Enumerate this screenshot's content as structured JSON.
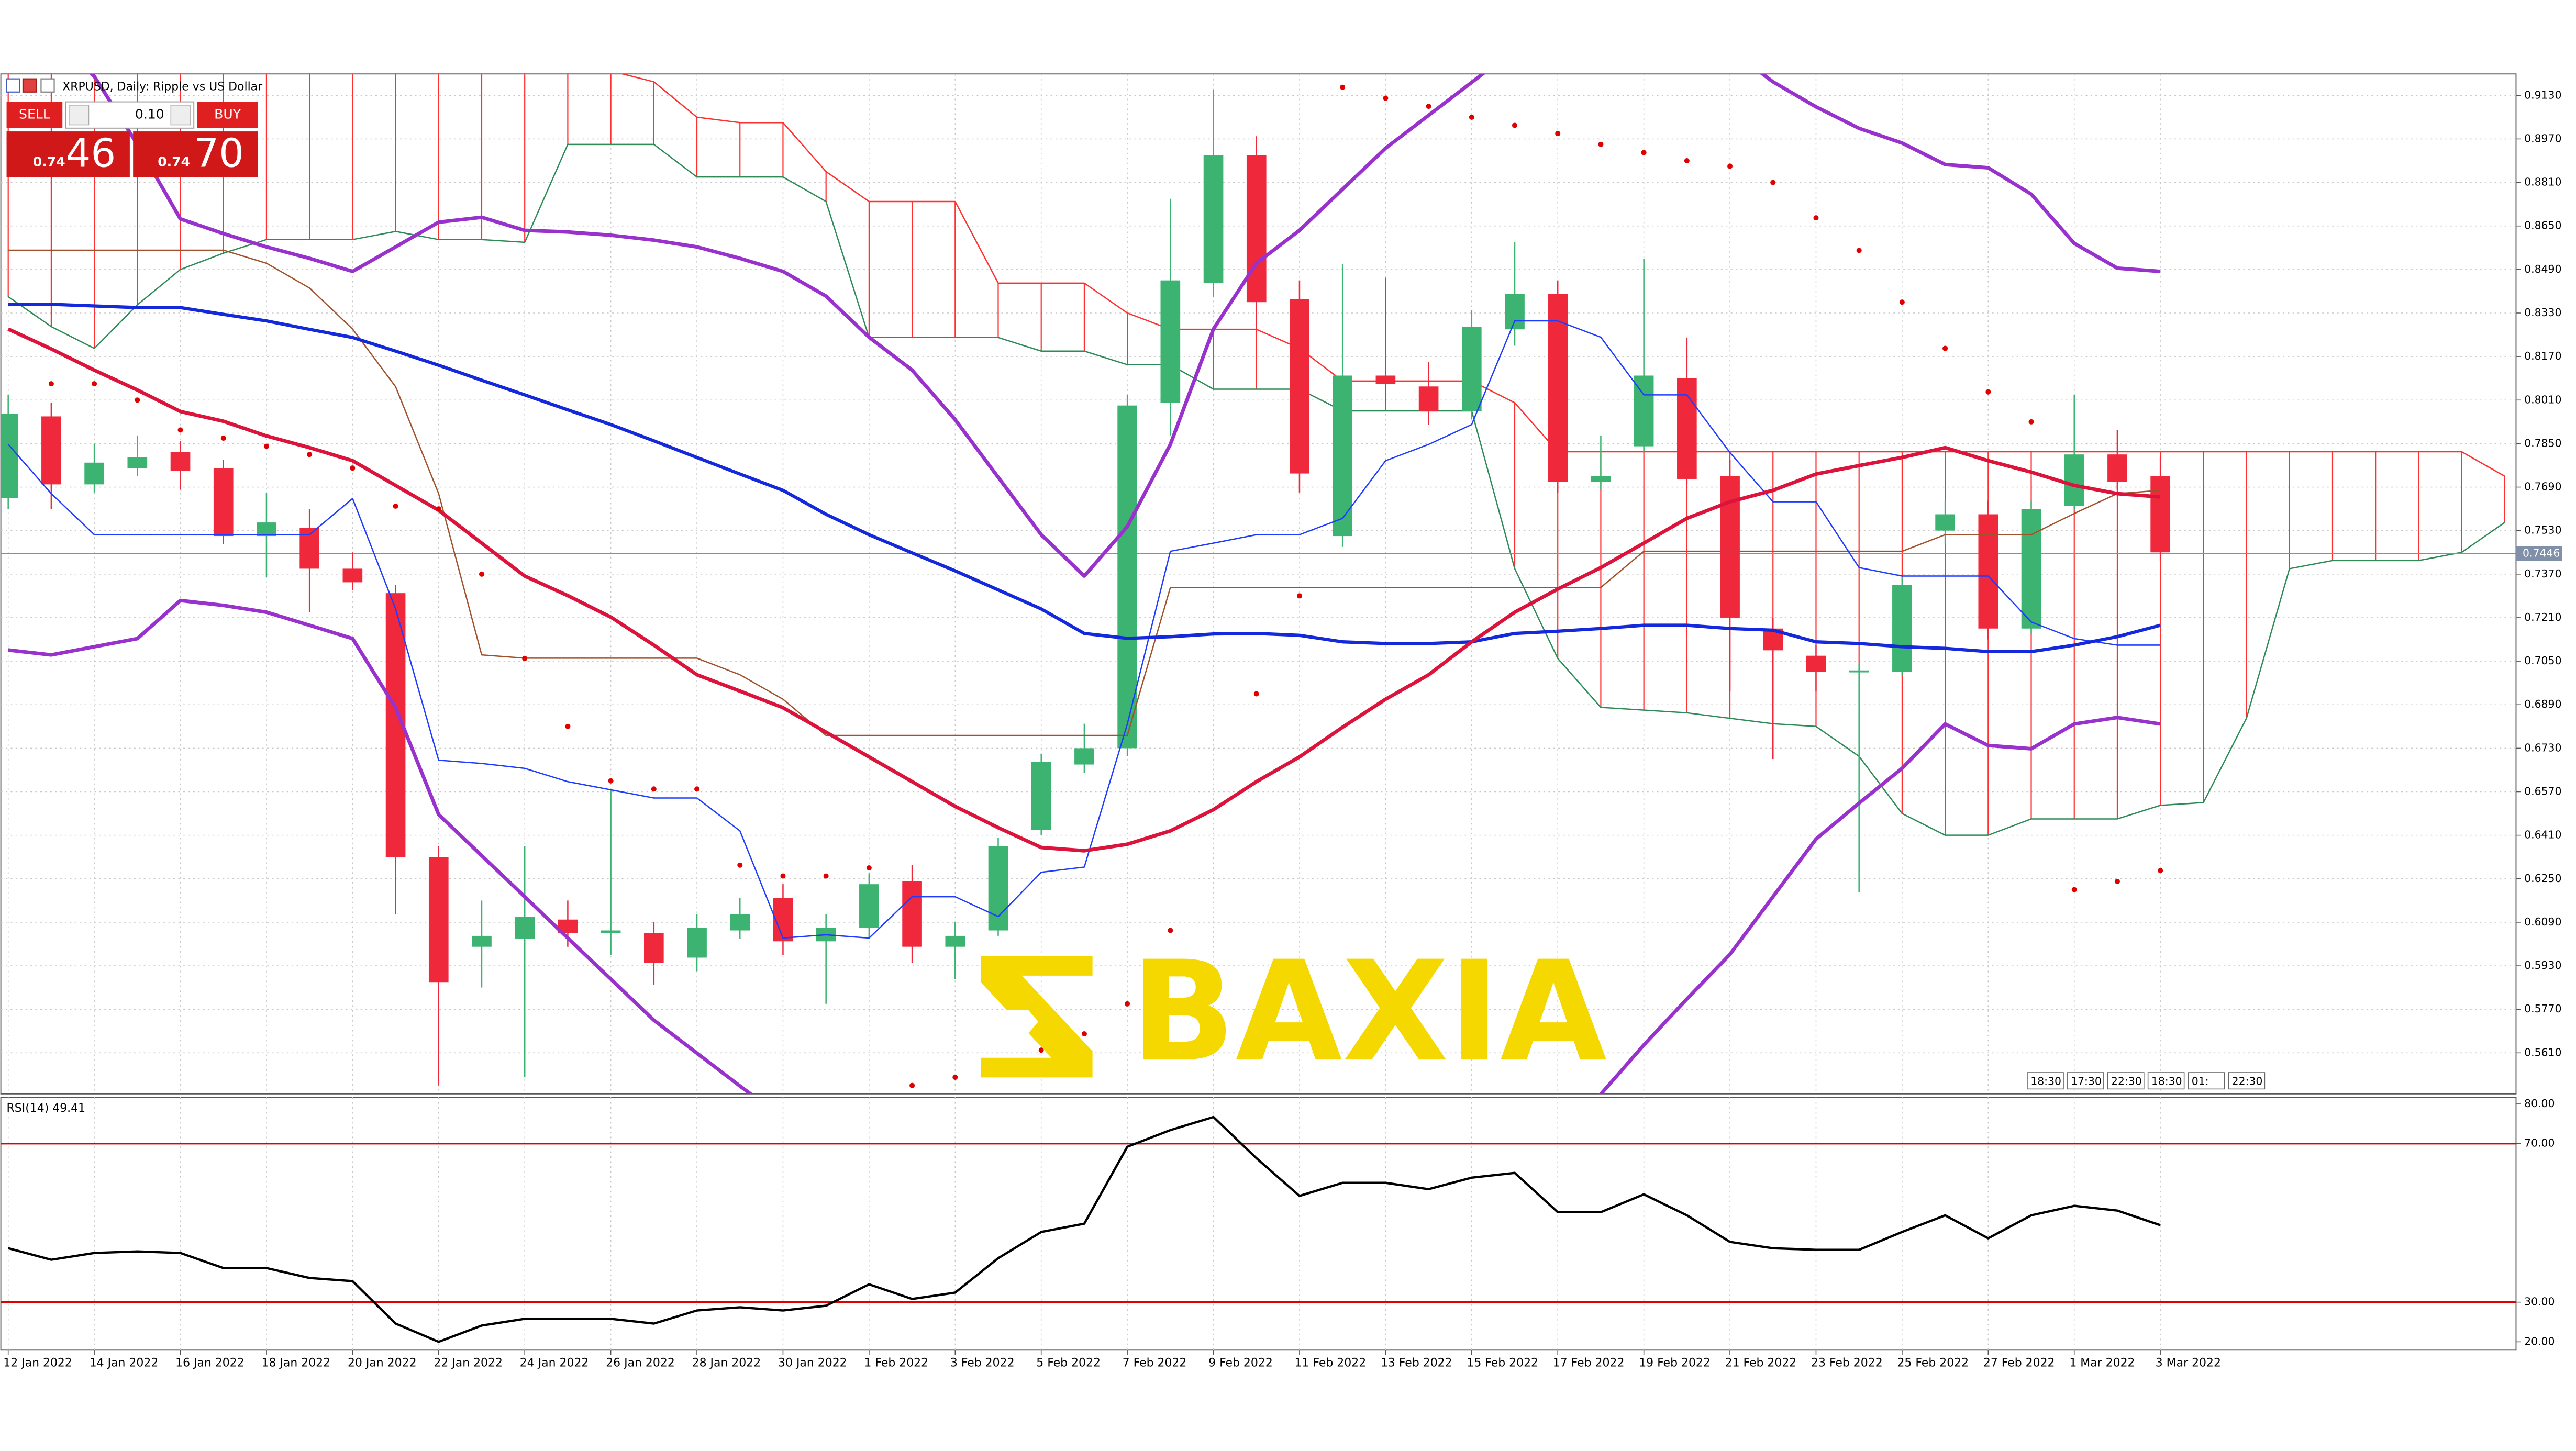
{
  "header": {
    "symbol": "XRPUSD, Daily: Ripple vs US Dollar"
  },
  "trade_panel": {
    "sell": "SELL",
    "buy": "BUY",
    "volume": "0.10",
    "bid_big": "0.74",
    "bid_small": "46",
    "ask_big": "0.74",
    "ask_small": "70"
  },
  "time_labels": [
    "18:30",
    "17:30",
    "22:30",
    "18:30",
    "01:",
    "22:30"
  ],
  "watermark": "BAXIA",
  "chart_data": [
    {
      "type": "candlestick",
      "categories": [
        "12 Jan 2022",
        null,
        "14 Jan 2022",
        null,
        "16 Jan 2022",
        null,
        "18 Jan 2022",
        null,
        "20 Jan 2022",
        null,
        "22 Jan 2022",
        null,
        "24 Jan 2022",
        null,
        "26 Jan 2022",
        null,
        "28 Jan 2022",
        null,
        "30 Jan 2022",
        null,
        "1 Feb 2022",
        null,
        "3 Feb 2022",
        null,
        "5 Feb 2022",
        null,
        "7 Feb 2022",
        null,
        "9 Feb 2022",
        null,
        "11 Feb 2022",
        null,
        "13 Feb 2022",
        null,
        "15 Feb 2022",
        null,
        "17 Feb 2022",
        null,
        "19 Feb 2022",
        null,
        "21 Feb 2022",
        null,
        "23 Feb 2022",
        null,
        "25 Feb 2022",
        null,
        "27 Feb 2022",
        null,
        "1 Mar 2022",
        null,
        "3 Mar 2022",
        null,
        null,
        null,
        null,
        null,
        null,
        null,
        null
      ],
      "open": [
        0.765,
        0.795,
        0.77,
        0.776,
        0.782,
        0.776,
        0.751,
        0.754,
        0.739,
        0.73,
        0.633,
        0.6,
        0.603,
        0.61,
        0.605,
        0.605,
        0.596,
        0.606,
        0.618,
        0.602,
        0.607,
        0.624,
        0.6,
        0.606,
        0.643,
        0.667,
        0.673,
        0.8,
        0.844,
        0.891,
        0.838,
        0.751,
        0.81,
        0.806,
        0.797,
        0.827,
        0.84,
        0.771,
        0.784,
        0.809,
        0.773,
        0.717,
        0.707,
        0.7013,
        0.701,
        0.753,
        0.759,
        0.717,
        0.762,
        0.781,
        0.773,
        null,
        null,
        null,
        null,
        null,
        null,
        null,
        null
      ],
      "high": [
        0.803,
        0.8,
        0.785,
        0.788,
        0.786,
        0.779,
        0.767,
        0.761,
        0.745,
        0.733,
        0.637,
        0.617,
        0.637,
        0.617,
        0.658,
        0.609,
        0.612,
        0.618,
        0.623,
        0.612,
        0.627,
        0.63,
        0.609,
        0.64,
        0.671,
        0.682,
        0.803,
        0.875,
        0.915,
        0.898,
        0.845,
        0.851,
        0.846,
        0.815,
        0.834,
        0.859,
        0.845,
        0.788,
        0.853,
        0.824,
        0.779,
        0.721,
        0.711,
        0.704,
        0.736,
        0.764,
        0.764,
        0.764,
        0.803,
        0.79,
        0.78,
        null,
        null,
        null,
        null,
        null,
        null,
        null,
        null
      ],
      "low": [
        0.761,
        0.761,
        0.767,
        0.773,
        0.768,
        0.748,
        0.736,
        0.723,
        0.731,
        0.612,
        0.549,
        0.585,
        0.552,
        0.6,
        0.597,
        0.586,
        0.591,
        0.603,
        0.597,
        0.579,
        0.603,
        0.594,
        0.588,
        0.604,
        0.641,
        0.664,
        0.67,
        0.788,
        0.839,
        0.827,
        0.767,
        0.747,
        0.8,
        0.792,
        0.794,
        0.821,
        0.767,
        0.768,
        0.782,
        0.77,
        0.694,
        0.669,
        0.694,
        0.62,
        0.7,
        0.748,
        0.713,
        0.715,
        0.761,
        0.768,
        0.742,
        null,
        null,
        null,
        null,
        null,
        null,
        null,
        null
      ],
      "close": [
        0.796,
        0.77,
        0.778,
        0.78,
        0.775,
        0.751,
        0.756,
        0.739,
        0.734,
        0.633,
        0.587,
        0.604,
        0.611,
        0.605,
        0.606,
        0.594,
        0.607,
        0.612,
        0.602,
        0.607,
        0.623,
        0.6,
        0.604,
        0.637,
        0.668,
        0.673,
        0.799,
        0.845,
        0.891,
        0.837,
        0.774,
        0.81,
        0.807,
        0.797,
        0.828,
        0.84,
        0.771,
        0.773,
        0.81,
        0.772,
        0.721,
        0.709,
        0.701,
        0.7016,
        0.733,
        0.759,
        0.717,
        0.761,
        0.781,
        0.771,
        0.745,
        null,
        null,
        null,
        null,
        null,
        null,
        null,
        null
      ],
      "up_color": "#3cb371",
      "down_color": "#f0283c",
      "ylim": [
        0.5459,
        0.9209
      ],
      "yticks": [
        {
          "value": 0.913,
          "label": "0.9130"
        },
        {
          "value": 0.897,
          "label": "0.8970"
        },
        {
          "value": 0.881,
          "label": "0.8810"
        },
        {
          "value": 0.865,
          "label": "0.8650"
        },
        {
          "value": 0.849,
          "label": "0.8490"
        },
        {
          "value": 0.833,
          "label": "0.8330"
        },
        {
          "value": 0.817,
          "label": "0.8170"
        },
        {
          "value": 0.801,
          "label": "0.8010"
        },
        {
          "value": 0.785,
          "label": "0.7850"
        },
        {
          "value": 0.769,
          "label": "0.7690"
        },
        {
          "value": 0.753,
          "label": "0.7530"
        },
        {
          "value": 0.737,
          "label": "0.7370"
        },
        {
          "value": 0.721,
          "label": "0.7210"
        },
        {
          "value": 0.705,
          "label": "0.7050"
        },
        {
          "value": 0.689,
          "label": "0.6890"
        },
        {
          "value": 0.673,
          "label": "0.6730"
        },
        {
          "value": 0.657,
          "label": "0.6570"
        },
        {
          "value": 0.641,
          "label": "0.6410"
        },
        {
          "value": 0.625,
          "label": "0.6250"
        },
        {
          "value": 0.609,
          "label": "0.6090"
        },
        {
          "value": 0.593,
          "label": "0.5930"
        },
        {
          "value": 0.577,
          "label": "0.5770"
        },
        {
          "value": 0.561,
          "label": "0.5610"
        }
      ],
      "grid": true,
      "current_price": {
        "value": 0.7446,
        "label": "0.7446"
      },
      "cloud": {
        "span_a": {
          "color": "#2e8b57",
          "values": [
            0.839,
            0.828,
            0.82,
            0.836,
            0.849,
            0.855,
            0.86,
            0.86,
            0.86,
            0.863,
            0.86,
            0.86,
            0.859,
            0.895,
            0.895,
            0.895,
            0.883,
            0.883,
            0.883,
            0.874,
            0.824,
            0.824,
            0.824,
            0.824,
            0.819,
            0.819,
            0.814,
            0.814,
            0.805,
            0.805,
            0.805,
            0.797,
            0.797,
            0.797,
            0.797,
            0.739,
            0.706,
            0.688,
            0.687,
            0.686,
            0.684,
            0.682,
            0.681,
            0.67,
            0.649,
            0.641,
            0.641,
            0.647,
            0.647,
            0.647,
            0.652,
            0.653,
            0.684,
            0.739,
            0.742,
            0.742,
            0.742,
            0.745,
            0.756
          ]
        },
        "span_b": {
          "color": "#ff3030",
          "values": [
            0.922,
            0.922,
            0.922,
            0.922,
            0.922,
            0.922,
            0.922,
            0.922,
            0.922,
            0.922,
            0.922,
            0.922,
            0.922,
            0.922,
            0.922,
            0.918,
            0.905,
            0.903,
            0.903,
            0.885,
            0.874,
            0.874,
            0.874,
            0.844,
            0.844,
            0.844,
            0.833,
            0.827,
            0.827,
            0.827,
            0.82,
            0.808,
            0.808,
            0.808,
            0.808,
            0.8,
            0.782,
            0.782,
            0.782,
            0.782,
            0.782,
            0.782,
            0.782,
            0.782,
            0.782,
            0.782,
            0.782,
            0.782,
            0.782,
            0.782,
            0.782,
            0.782,
            0.782,
            0.782,
            0.782,
            0.782,
            0.782,
            0.782,
            0.773
          ]
        }
      },
      "overlays": [
        {
          "color": "#a0522d",
          "width": 0.8,
          "values": [
            0.8561,
            0.8561,
            0.8561,
            0.8561,
            0.8561,
            0.8561,
            0.8513,
            0.8422,
            0.8271,
            0.8059,
            0.7666,
            0.7073,
            0.7061,
            0.7061,
            0.7061,
            0.7061,
            0.7061,
            0.7,
            0.691,
            0.6777,
            0.6777,
            0.6777,
            0.6777,
            0.6777,
            0.6777,
            0.6777,
            0.6777,
            0.7321,
            0.7321,
            0.7321,
            0.7321,
            0.7321,
            0.7321,
            0.7321,
            0.7321,
            0.7321,
            0.7321,
            0.7321,
            0.7454,
            0.7454,
            0.7454,
            0.7454,
            0.7454,
            0.7454,
            0.7454,
            0.7515,
            0.7515,
            0.7515,
            0.7593,
            0.7666,
            0.7678,
            null,
            null,
            null,
            null,
            null,
            null,
            null,
            null
          ]
        },
        {
          "color": "#1e3cff",
          "width": 0.8,
          "values": [
            0.7847,
            0.7666,
            0.7515,
            0.7515,
            0.7515,
            0.7515,
            0.7515,
            0.7515,
            0.7648,
            0.7242,
            0.6686,
            0.6674,
            0.6656,
            0.6607,
            0.6577,
            0.6547,
            0.6547,
            0.6426,
            0.6032,
            0.6044,
            0.6032,
            0.6184,
            0.6184,
            0.6111,
            0.6274,
            0.6293,
            0.6819,
            0.7454,
            0.7484,
            0.7515,
            0.7515,
            0.7575,
            0.7787,
            0.7847,
            0.792,
            0.8301,
            0.8301,
            0.8241,
            0.8029,
            0.8029,
            0.7817,
            0.7636,
            0.7636,
            0.7394,
            0.7363,
            0.7363,
            0.7363,
            0.7194,
            0.7133,
            0.7109,
            0.7109,
            null,
            null,
            null,
            null,
            null,
            null,
            null,
            null
          ]
        },
        {
          "color": "#1428dc",
          "width": 2,
          "values": [
            0.8362,
            0.8362,
            0.8356,
            0.835,
            0.835,
            0.8325,
            0.8301,
            0.827,
            0.824,
            0.819,
            0.8138,
            0.8083,
            0.8029,
            0.7974,
            0.792,
            0.786,
            0.7799,
            0.7738,
            0.7678,
            0.759,
            0.7515,
            0.7448,
            0.7382,
            0.7312,
            0.7242,
            0.7152,
            0.7134,
            0.714,
            0.715,
            0.7152,
            0.7145,
            0.7121,
            0.7115,
            0.7115,
            0.7121,
            0.7152,
            0.716,
            0.717,
            0.7182,
            0.7182,
            0.717,
            0.7164,
            0.7121,
            0.7115,
            0.7103,
            0.7097,
            0.7085,
            0.7085,
            0.7109,
            0.714,
            0.7182,
            null,
            null,
            null,
            null,
            null,
            null,
            null,
            null
          ]
        },
        {
          "color": "#dc143c",
          "width": 2.2,
          "values": [
            0.8271,
            0.8198,
            0.812,
            0.8047,
            0.7968,
            0.7932,
            0.7878,
            0.7835,
            0.7787,
            0.7696,
            0.7605,
            0.7484,
            0.7363,
            0.7291,
            0.7212,
            0.7109,
            0.7,
            0.694,
            0.6879,
            0.6789,
            0.6698,
            0.6607,
            0.6516,
            0.6438,
            0.6365,
            0.6353,
            0.6377,
            0.6426,
            0.6504,
            0.6607,
            0.6698,
            0.6807,
            0.691,
            0.7,
            0.7121,
            0.723,
            0.7315,
            0.7394,
            0.7484,
            0.7575,
            0.7636,
            0.7678,
            0.7738,
            0.7769,
            0.7799,
            0.7835,
            0.7787,
            0.7745,
            0.7696,
            0.7666,
            0.7654,
            null,
            null,
            null,
            null,
            null,
            null,
            null,
            null
          ]
        },
        {
          "color": "#9932cc",
          "width": 2.2,
          "values": [
            0.945,
            0.935,
            0.92,
            0.895,
            0.8676,
            0.8622,
            0.8573,
            0.8531,
            0.8483,
            0.8573,
            0.8664,
            0.8682,
            0.8634,
            0.8628,
            0.8616,
            0.8598,
            0.8573,
            0.8531,
            0.8483,
            0.8392,
            0.8241,
            0.812,
            0.7938,
            0.7726,
            0.7515,
            0.7363,
            0.7545,
            0.7847,
            0.8271,
            0.8513,
            0.8634,
            0.8785,
            0.8936,
            0.9057,
            0.9178,
            0.93,
            0.94,
            0.945,
            0.945,
            0.94,
            0.93,
            0.918,
            0.9088,
            0.9009,
            0.8955,
            0.8876,
            0.8864,
            0.8767,
            0.8586,
            0.8495,
            0.8483,
            null,
            null,
            null,
            null,
            null,
            null,
            null,
            null
          ]
        },
        {
          "color": "#9932cc",
          "width": 2.2,
          "values": [
            0.7091,
            0.7073,
            0.7103,
            0.7133,
            0.7273,
            0.7255,
            0.723,
            0.7182,
            0.7133,
            0.6879,
            0.6486,
            0.6335,
            0.6184,
            0.6032,
            0.5881,
            0.573,
            0.5609,
            0.5488,
            0.537,
            0.528,
            0.52,
            0.512,
            0.505,
            0.5,
            0.497,
            0.495,
            0.49,
            0.48,
            0.47,
            0.465,
            0.468,
            0.475,
            0.485,
            0.497,
            0.51,
            0.522,
            0.535,
            0.5458,
            0.5639,
            0.5808,
            0.5972,
            0.6184,
            0.6396,
            0.6528,
            0.6656,
            0.6819,
            0.674,
            0.6728,
            0.6819,
            0.6843,
            0.6819,
            null,
            null,
            null,
            null,
            null,
            null,
            null,
            null
          ]
        }
      ],
      "sar": {
        "color": "#e00000",
        "values": [
          null,
          0.807,
          0.807,
          0.801,
          0.79,
          0.787,
          0.784,
          0.781,
          0.776,
          0.762,
          0.761,
          0.737,
          0.706,
          0.681,
          0.661,
          0.658,
          0.658,
          0.63,
          0.626,
          0.626,
          0.629,
          0.549,
          0.552,
          0.556,
          0.562,
          0.568,
          0.579,
          0.606,
          null,
          0.693,
          0.729,
          0.916,
          0.912,
          0.909,
          0.905,
          0.902,
          0.899,
          0.895,
          0.892,
          0.889,
          0.887,
          0.881,
          0.868,
          0.856,
          0.837,
          0.82,
          0.804,
          0.793,
          0.621,
          0.624,
          0.628,
          null,
          null,
          null,
          null,
          null,
          null,
          null,
          null
        ]
      }
    },
    {
      "type": "line",
      "title": "RSI(14) 49.41",
      "color": "#000000",
      "values": [
        43.6,
        40.7,
        42.4,
        42.8,
        42.4,
        38.6,
        38.6,
        36.1,
        35.3,
        24.6,
        20.0,
        24.1,
        25.8,
        25.8,
        25.8,
        24.6,
        27.9,
        28.7,
        27.9,
        29.1,
        34.5,
        30.8,
        32.4,
        41.1,
        47.7,
        49.8,
        69.2,
        73.4,
        76.7,
        66.3,
        56.8,
        60.1,
        60.1,
        58.5,
        61.4,
        62.6,
        52.7,
        52.7,
        57.2,
        51.9,
        45.2,
        43.6,
        43.2,
        43.2,
        47.7,
        51.9,
        46.1,
        51.9,
        54.3,
        53.1,
        49.41,
        null,
        null,
        null,
        null,
        null,
        null,
        null,
        null
      ],
      "ylim": [
        17.9,
        81.7
      ],
      "yticks": [
        {
          "value": 80,
          "label": "80.00"
        },
        {
          "value": 70,
          "label": "70.00"
        },
        {
          "value": 30,
          "label": "30.00"
        },
        {
          "value": 20,
          "label": "20.00"
        }
      ],
      "levels": [
        70,
        30
      ],
      "level_color": "#e00000"
    }
  ]
}
